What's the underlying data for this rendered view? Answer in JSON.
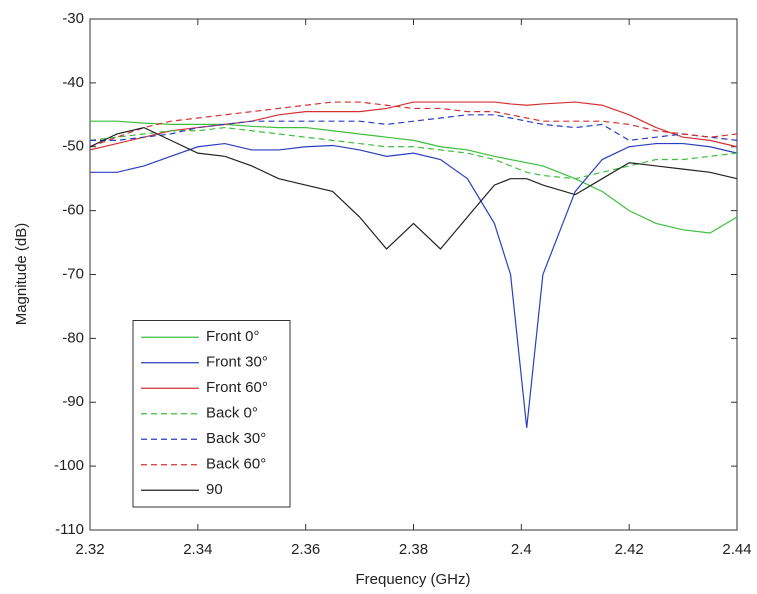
{
  "chart_data": {
    "type": "line",
    "xlabel": "Frequency (GHz)",
    "ylabel": "Magnitude (dB)",
    "x": [
      2.32,
      2.325,
      2.33,
      2.335,
      2.34,
      2.345,
      2.35,
      2.355,
      2.36,
      2.365,
      2.37,
      2.375,
      2.38,
      2.385,
      2.39,
      2.395,
      2.398,
      2.401,
      2.404,
      2.41,
      2.415,
      2.42,
      2.425,
      2.43,
      2.435,
      2.44
    ],
    "xlim": [
      2.32,
      2.44
    ],
    "xticks": [
      2.32,
      2.34,
      2.36,
      2.38,
      2.4,
      2.42,
      2.44
    ],
    "ylim": [
      -110,
      -30
    ],
    "yticks": [
      -30,
      -40,
      -50,
      -60,
      -70,
      -80,
      -90,
      -100,
      -110
    ],
    "grid": false,
    "legend": "lower left",
    "series": [
      {
        "name": "Front 0°",
        "color": "#3cbf3c",
        "style": "solid",
        "values": [
          -46,
          -46,
          -46.3,
          -46.5,
          -46.5,
          -46.5,
          -46.8,
          -47,
          -47,
          -47.5,
          -48,
          -48.5,
          -49,
          -50,
          -50.5,
          -51.5,
          -52,
          -52.5,
          -53,
          -55,
          -57,
          -60,
          -62,
          -63,
          -63.5,
          -61
        ]
      },
      {
        "name": "Front 30°",
        "color": "#2b3fbf",
        "style": "solid",
        "values": [
          -54,
          -54,
          -53,
          -51.5,
          -50,
          -49.5,
          -50.5,
          -50.5,
          -50,
          -49.8,
          -50.5,
          -51.5,
          -51,
          -52,
          -55,
          -62,
          -70,
          -94,
          -70,
          -57,
          -52,
          -50,
          -49.5,
          -49.5,
          -50,
          -51
        ]
      },
      {
        "name": "Front 60°",
        "color": "#d43232",
        "style": "solid",
        "values": [
          -50.5,
          -49.5,
          -48.5,
          -47.5,
          -47,
          -46.5,
          -46,
          -45,
          -44.5,
          -44.5,
          -44.5,
          -44,
          -43,
          -43,
          -43,
          -43,
          -43.3,
          -43.5,
          -43.3,
          -43,
          -43.5,
          -45,
          -47,
          -48.5,
          -49,
          -50
        ]
      },
      {
        "name": "Back 0°",
        "color": "#3cbf3c",
        "style": "dashed",
        "values": [
          -49,
          -48.5,
          -48,
          -47.5,
          -47.5,
          -47,
          -47.5,
          -48,
          -48.5,
          -49,
          -49.5,
          -50,
          -50,
          -50.5,
          -51,
          -52,
          -53,
          -54,
          -54.5,
          -55,
          -54,
          -53,
          -52,
          -52,
          -51.5,
          -51
        ]
      },
      {
        "name": "Back 30°",
        "color": "#2b3fbf",
        "style": "dashed",
        "values": [
          -49,
          -49,
          -48.5,
          -48,
          -47,
          -46.5,
          -46,
          -46,
          -46,
          -46,
          -46,
          -46.5,
          -46,
          -45.5,
          -45,
          -45,
          -45.5,
          -46,
          -46.5,
          -47,
          -46.5,
          -49,
          -48.5,
          -48,
          -48.5,
          -49
        ]
      },
      {
        "name": "Back 60°",
        "color": "#d43232",
        "style": "dashed",
        "values": [
          -50,
          -48.5,
          -47,
          -46,
          -45.5,
          -45,
          -44.5,
          -44,
          -43.5,
          -43,
          -43,
          -43.5,
          -44,
          -44,
          -44.5,
          -44.5,
          -45,
          -45.5,
          -46,
          -46,
          -46,
          -46.5,
          -47.5,
          -48,
          -48.5,
          -48
        ]
      },
      {
        "name": "90",
        "color": "#222222",
        "style": "solid",
        "values": [
          -50,
          -48,
          -47,
          -49,
          -51,
          -51.5,
          -53,
          -55,
          -56,
          -57,
          -61,
          -66,
          -62,
          -66,
          -61,
          -56,
          -55,
          -55,
          -56,
          -57.5,
          -55,
          -52.5,
          -53,
          -53.5,
          -54,
          -55
        ]
      }
    ]
  }
}
